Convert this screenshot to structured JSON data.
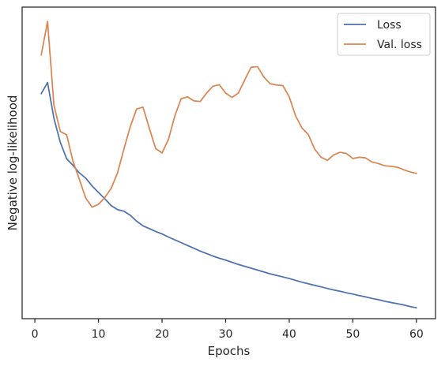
{
  "chart_data": {
    "type": "line",
    "xlabel": "Epochs",
    "ylabel": "Negative log-likelihood",
    "xlim": [
      -2.0,
      63.0
    ],
    "ylim": [
      0,
      100
    ],
    "xticks": [
      0,
      10,
      20,
      30,
      40,
      50,
      60
    ],
    "y_tick_labels_shown": false,
    "grid": false,
    "legend_position": "top-right",
    "x": [
      1,
      2,
      3,
      4,
      5,
      6,
      7,
      8,
      9,
      10,
      11,
      12,
      13,
      14,
      15,
      16,
      17,
      18,
      19,
      20,
      21,
      22,
      23,
      24,
      25,
      26,
      27,
      28,
      29,
      30,
      31,
      32,
      33,
      34,
      35,
      36,
      37,
      38,
      39,
      40,
      41,
      42,
      43,
      44,
      45,
      46,
      47,
      48,
      49,
      50,
      51,
      52,
      53,
      54,
      55,
      56,
      57,
      58,
      59,
      60
    ],
    "series": [
      {
        "name": "Loss",
        "color": "#4c72b0",
        "values": [
          72.2,
          75.8,
          64.3,
          56.6,
          51.3,
          49.2,
          46.8,
          45.1,
          42.6,
          40.5,
          38.5,
          36.3,
          35.0,
          34.5,
          33.2,
          31.3,
          29.8,
          28.9,
          28.0,
          27.2,
          26.2,
          25.3,
          24.4,
          23.5,
          22.6,
          21.7,
          20.9,
          20.1,
          19.4,
          18.8,
          18.1,
          17.4,
          16.8,
          16.2,
          15.6,
          15.0,
          14.4,
          13.9,
          13.4,
          12.9,
          12.3,
          11.7,
          11.2,
          10.7,
          10.2,
          9.7,
          9.2,
          8.8,
          8.3,
          7.9,
          7.4,
          7.0,
          6.5,
          6.1,
          5.6,
          5.2,
          4.8,
          4.4,
          3.9,
          3.5
        ]
      },
      {
        "name": "Val. loss",
        "color": "#dd8452",
        "values": [
          84.6,
          95.4,
          68.5,
          60.1,
          59.0,
          50.5,
          44.7,
          38.7,
          35.8,
          36.7,
          38.9,
          41.8,
          46.8,
          54.4,
          61.6,
          67.3,
          67.9,
          61.1,
          54.6,
          53.2,
          57.5,
          65.0,
          70.6,
          71.2,
          69.9,
          69.7,
          72.4,
          74.6,
          75.1,
          72.4,
          71.0,
          72.4,
          76.6,
          80.7,
          80.9,
          77.6,
          75.4,
          75.0,
          74.8,
          71.2,
          65.1,
          61.2,
          59.1,
          54.4,
          51.8,
          50.8,
          52.6,
          53.4,
          53.0,
          51.4,
          51.8,
          51.6,
          50.3,
          49.8,
          49.1,
          48.9,
          48.6,
          47.8,
          47.1,
          46.6
        ]
      }
    ]
  }
}
